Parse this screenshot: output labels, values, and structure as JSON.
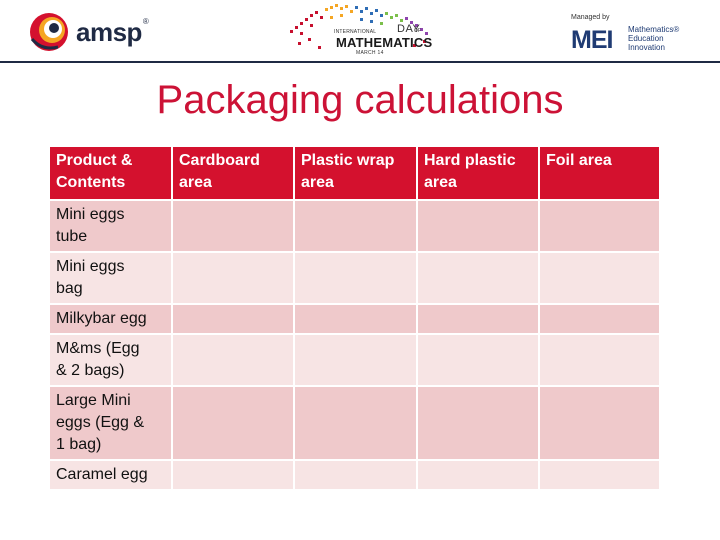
{
  "logos": {
    "amsp": {
      "text": "amsp",
      "mark": "®"
    },
    "idm": {
      "international": "INTERNATIONAL",
      "day": "DAY",
      "of": "OF",
      "mathematics": "MATHEMATICS",
      "date": "MARCH 14"
    },
    "mei": {
      "managed_by": "Managed by",
      "name": "MEI",
      "tagline": [
        "Mathematics®",
        "Education",
        "Innovation"
      ]
    }
  },
  "title": "Packaging calculations",
  "table": {
    "headers": [
      [
        "Product &",
        "Contents"
      ],
      [
        "Cardboard",
        "area"
      ],
      [
        "Plastic wrap",
        "area"
      ],
      [
        "Hard plastic",
        "area"
      ],
      [
        "Foil area"
      ]
    ],
    "rows": [
      {
        "product": [
          "Mini eggs",
          "tube"
        ],
        "cells": [
          "",
          "",
          "",
          ""
        ]
      },
      {
        "product": [
          "Mini eggs",
          "bag"
        ],
        "cells": [
          "",
          "",
          "",
          ""
        ]
      },
      {
        "product": [
          "Milkybar egg"
        ],
        "cells": [
          "",
          "",
          "",
          ""
        ]
      },
      {
        "product": [
          "M&ms (Egg",
          "& 2 bags)"
        ],
        "cells": [
          "",
          "",
          "",
          ""
        ]
      },
      {
        "product": [
          "Large Mini",
          "eggs (Egg &",
          "1 bag)"
        ],
        "cells": [
          "",
          "",
          "",
          ""
        ]
      },
      {
        "product": [
          "Caramel egg"
        ],
        "cells": [
          "",
          "",
          "",
          ""
        ]
      }
    ]
  },
  "colors": {
    "accent": "#cc1236",
    "header_bg": "#d4112e",
    "row_odd": "#efc9cb",
    "row_even": "#f7e4e4",
    "navy": "#1f2a44"
  }
}
